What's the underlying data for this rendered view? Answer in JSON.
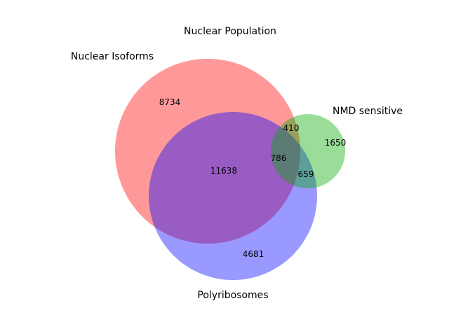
{
  "chart_data": {
    "type": "venn3",
    "title": "Nuclear Population",
    "sets": [
      {
        "name": "Nuclear Isoforms",
        "color": "#ff0000"
      },
      {
        "name": "Polyribosomes",
        "color": "#0000ff"
      },
      {
        "name": "NMD sensitive",
        "color": "#00aa00"
      }
    ],
    "regions": {
      "nuclear_isoforms_only": "8734",
      "polyribosomes_only": "4681",
      "nmd_sensitive_only": "1650",
      "nuclear_isoforms_and_polyribosomes": "11638",
      "nuclear_isoforms_and_nmd_sensitive": "410",
      "polyribosomes_and_nmd_sensitive": "659",
      "all_three": "786"
    }
  }
}
